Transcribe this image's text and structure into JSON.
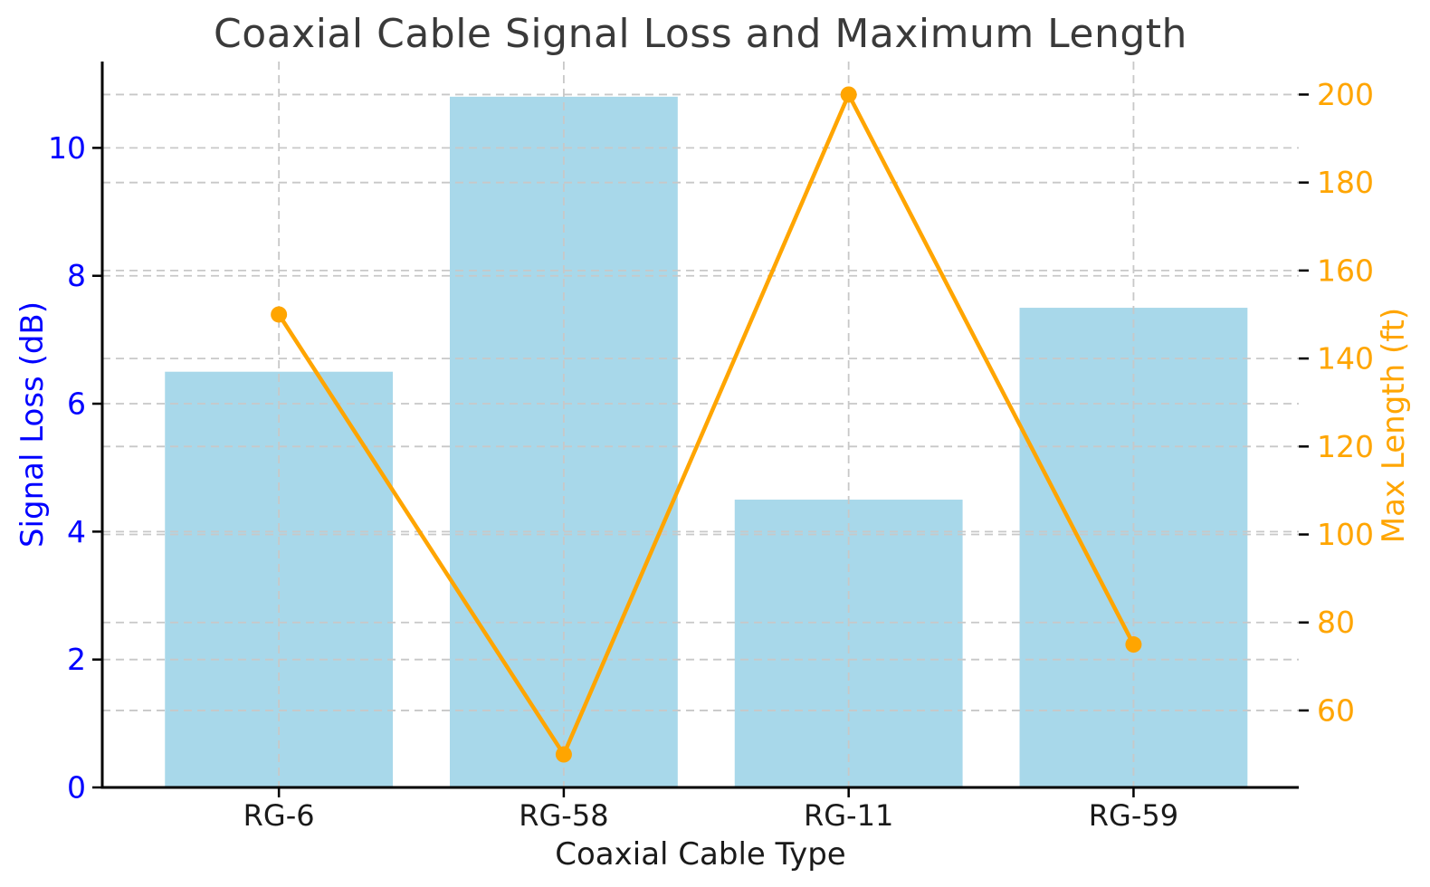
{
  "chart_data": {
    "type": "bar",
    "title": "Coaxial Cable Signal Loss and Maximum Length",
    "xlabel": "Coaxial Cable Type",
    "ylabel_left": "Signal Loss (dB)",
    "ylabel_right": "Max Length (ft)",
    "categories": [
      "RG-6",
      "RG-58",
      "RG-11",
      "RG-59"
    ],
    "series": [
      {
        "name": "Signal Loss (dB)",
        "kind": "bar",
        "axis": "left",
        "values": [
          6.5,
          10.8,
          4.5,
          7.5
        ]
      },
      {
        "name": "Max Length (ft)",
        "kind": "line",
        "axis": "right",
        "values": [
          150,
          50,
          200,
          75
        ]
      }
    ],
    "ylim_left": [
      0,
      11.35
    ],
    "ylim_right": [
      42.5,
      207.5
    ],
    "yticks_left": [
      0,
      2,
      4,
      6,
      8,
      10
    ],
    "yticks_right": [
      60,
      80,
      100,
      120,
      140,
      160,
      180,
      200
    ],
    "grid": true,
    "grid_vertical": true,
    "legend_position": "none"
  },
  "colors": {
    "background": "#FFFFFF",
    "title_text": "#3A3A3A",
    "bar_fill": "#A8D8EA",
    "line_stroke": "#FFA500",
    "marker_fill": "#FFA500",
    "left_axis": "#0000FF",
    "right_axis": "#FFA500",
    "x_tick_label": "#1A1A1A",
    "grid": "#C8C8C8",
    "spine": "#000000"
  }
}
